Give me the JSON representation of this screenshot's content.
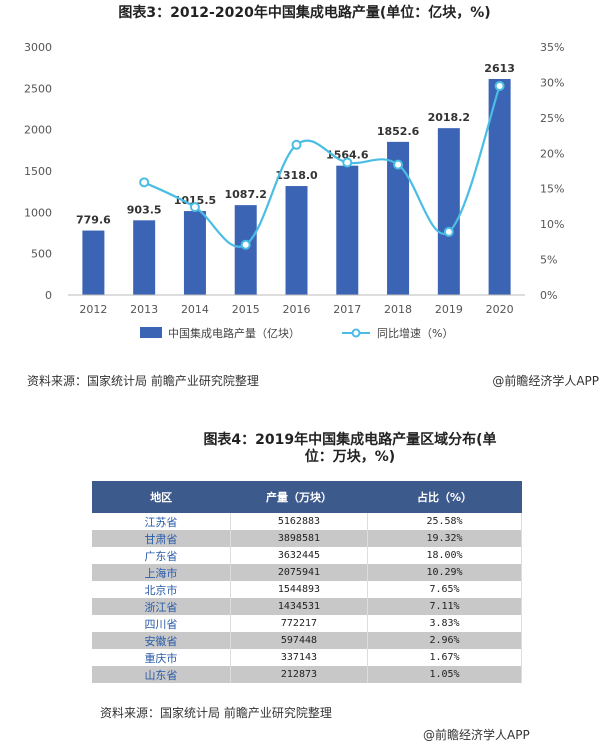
{
  "figure1": {
    "title": "图表3：2012-2020年中国集成电路产量(单位：亿块，%)",
    "source": "资料来源：国家统计局 前瞻产业研究院整理",
    "brand": "@前瞻经济学人APP"
  },
  "figure2": {
    "title": "图表4：2019年中国集成电路产量区域分布(单位：万块，%)",
    "source": "资料来源：国家统计局 前瞻产业研究院整理",
    "brand": "@前瞻经济学人APP",
    "headers": [
      "地区",
      "产量（万块）",
      "占比（%）"
    ]
  },
  "chart_data": [
    {
      "type": "bar",
      "title": "图表3：2012-2020年中国集成电路产量(单位：亿块，%)",
      "categories": [
        "2012",
        "2013",
        "2014",
        "2015",
        "2016",
        "2017",
        "2018",
        "2019",
        "2020"
      ],
      "series": [
        {
          "name": "中国集成电路产量（亿块）",
          "type": "bar",
          "axis": "left",
          "values": [
            779.6,
            903.5,
            1015.5,
            1087.2,
            1318.0,
            1564.6,
            1852.6,
            2018.2,
            2613
          ],
          "labels": [
            "779.6",
            "903.5",
            "1015.5",
            "1087.2",
            "1318.0",
            "1564.6",
            "1852.6",
            "2018.2",
            "2613"
          ]
        },
        {
          "name": "同比增速（%）",
          "type": "line",
          "axis": "right",
          "values": [
            null,
            15.9,
            12.4,
            7.1,
            21.2,
            18.7,
            18.4,
            8.9,
            29.5
          ]
        }
      ],
      "y_left": {
        "ticks": [
          "0",
          "500",
          "1000",
          "1500",
          "2000",
          "2500",
          "3000"
        ],
        "ylim": [
          0,
          3000
        ]
      },
      "y_right": {
        "ticks": [
          "0%",
          "5%",
          "10%",
          "15%",
          "20%",
          "25%",
          "30%",
          "35%"
        ],
        "ylim": [
          0,
          35
        ]
      },
      "colors": {
        "bar": "#3c64b4",
        "line": "#4bbde4"
      },
      "legend_position": "bottom",
      "grid": false
    },
    {
      "type": "table",
      "title": "图表4：2019年中国集成电路产量区域分布(单位：万块，%)",
      "columns": [
        "地区",
        "产量（万块）",
        "占比（%）"
      ],
      "rows": [
        [
          "江苏省",
          "5162883",
          "25.58%"
        ],
        [
          "甘肃省",
          "3898581",
          "19.32%"
        ],
        [
          "广东省",
          "3632445",
          "18.00%"
        ],
        [
          "上海市",
          "2075941",
          "10.29%"
        ],
        [
          "北京市",
          "1544893",
          "7.65%"
        ],
        [
          "浙江省",
          "1434531",
          "7.11%"
        ],
        [
          "四川省",
          "772217",
          "3.83%"
        ],
        [
          "安徽省",
          "597448",
          "2.96%"
        ],
        [
          "重庆市",
          "337143",
          "1.67%"
        ],
        [
          "山东省",
          "212873",
          "1.05%"
        ]
      ]
    }
  ]
}
